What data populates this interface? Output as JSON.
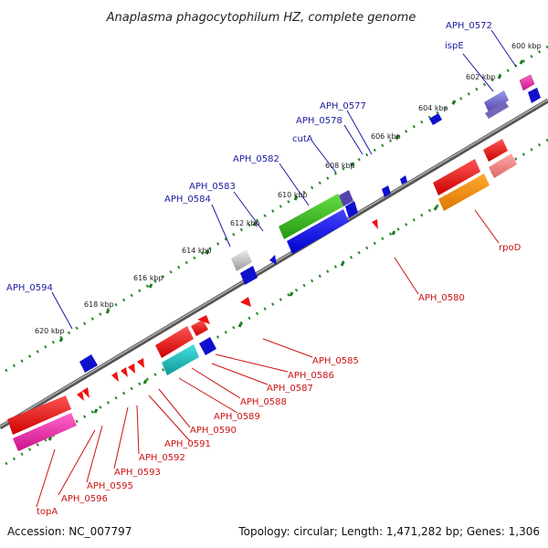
{
  "title": "Anaplasma phagocytophilum HZ, complete genome",
  "footer": {
    "accession": "Accession: NC_007797",
    "info": "Topology: circular; Length: 1,471,282 bp; Genes: 1,306"
  },
  "colors": {
    "backbone": "#808080",
    "tick_dots": "#2a8a2a",
    "top_label": "#1a1aa0",
    "bottom_label": "#cc1111"
  },
  "kbp_labels": [
    "600 kbp",
    "602 kbp",
    "604 kbp",
    "606 kbp",
    "608 kbp",
    "610 kbp",
    "612 kbp",
    "614 kbp",
    "616 kbp",
    "618 kbp",
    "620 kbp"
  ],
  "top_labels": [
    "APH_0572",
    "ispE",
    "APH_0577",
    "APH_0578",
    "cutA",
    "APH_0582",
    "APH_0583",
    "APH_0584",
    "APH_0594"
  ],
  "bottom_labels": [
    "rpoD",
    "APH_0580",
    "APH_0585",
    "APH_0586",
    "APH_0587",
    "APH_0588",
    "APH_0589",
    "APH_0590",
    "APH_0591",
    "APH_0592",
    "APH_0593",
    "APH_0595",
    "APH_0596",
    "topA"
  ]
}
